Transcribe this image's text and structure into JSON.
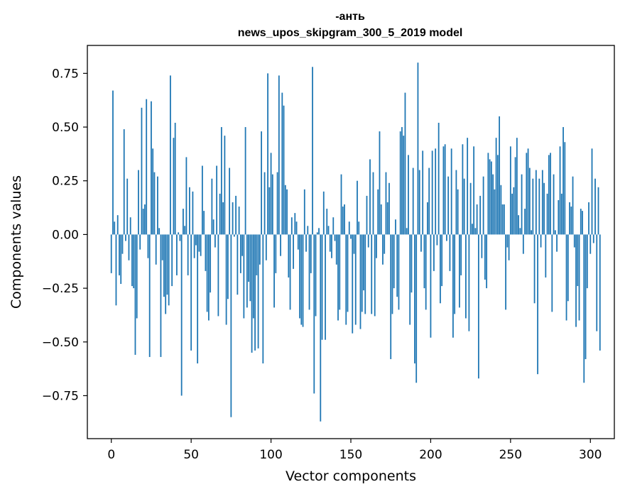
{
  "chart_data": {
    "type": "bar",
    "title": "-анть",
    "subtitle": "news_upos_skipgram_300_5_2019 model",
    "xlabel": "Vector components",
    "ylabel": "Components values",
    "xlim": [
      -15,
      315
    ],
    "ylim": [
      -0.95,
      0.88
    ],
    "xticks": [
      0,
      50,
      100,
      150,
      200,
      250,
      300
    ],
    "xtick_labels": [
      "0",
      "50",
      "100",
      "150",
      "200",
      "250",
      "300"
    ],
    "yticks": [
      0.75,
      0.5,
      0.25,
      0.0,
      -0.25,
      -0.5,
      -0.75
    ],
    "ytick_labels": [
      "0.75",
      "0.50",
      "0.25",
      "0.00",
      "−0.25",
      "−0.50",
      "−0.75"
    ],
    "color": "#1f77b4",
    "grid": false,
    "values": [
      -0.18,
      0.67,
      0.06,
      -0.33,
      0.09,
      -0.19,
      -0.23,
      -0.09,
      0.49,
      -0.03,
      0.26,
      -0.12,
      0.08,
      -0.24,
      -0.25,
      -0.56,
      -0.39,
      0.3,
      -0.07,
      0.59,
      0.12,
      0.14,
      0.63,
      -0.11,
      -0.57,
      0.62,
      0.4,
      0.29,
      -0.14,
      0.27,
      0.03,
      -0.57,
      -0.12,
      -0.29,
      -0.37,
      -0.28,
      -0.33,
      0.74,
      -0.24,
      0.45,
      0.52,
      -0.19,
      0.01,
      -0.03,
      -0.75,
      0.12,
      0.04,
      0.36,
      -0.19,
      0.22,
      -0.54,
      0.2,
      -0.11,
      -0.05,
      -0.6,
      -0.08,
      -0.1,
      0.32,
      0.11,
      -0.17,
      -0.36,
      -0.4,
      -0.27,
      0.26,
      0.07,
      -0.06,
      0.32,
      -0.38,
      0.19,
      0.5,
      0.15,
      0.46,
      -0.42,
      -0.3,
      0.31,
      -0.85,
      0.15,
      -0.01,
      0.18,
      -0.28,
      0.13,
      -0.18,
      -0.1,
      -0.39,
      0.5,
      -0.34,
      -0.22,
      -0.31,
      -0.55,
      -0.39,
      -0.54,
      -0.19,
      -0.53,
      -0.14,
      0.48,
      -0.6,
      0.29,
      -0.12,
      0.75,
      0.22,
      0.38,
      0.28,
      -0.34,
      -0.18,
      0.29,
      0.74,
      -0.1,
      0.66,
      0.6,
      0.23,
      0.21,
      -0.2,
      -0.35,
      0.08,
      -0.16,
      0.1,
      0.06,
      -0.07,
      -0.39,
      -0.42,
      -0.43,
      0.21,
      -0.08,
      0.04,
      -0.35,
      -0.18,
      0.78,
      -0.74,
      -0.38,
      0.01,
      0.03,
      -0.87,
      -0.49,
      0.2,
      -0.49,
      0.12,
      0.04,
      -0.08,
      -0.11,
      0.08,
      -0.03,
      -0.14,
      -0.4,
      -0.35,
      0.28,
      0.13,
      0.14,
      -0.42,
      -0.36,
      0.06,
      -0.02,
      -0.46,
      -0.09,
      -0.42,
      0.25,
      0.06,
      -0.44,
      -0.36,
      -0.26,
      -0.37,
      0.18,
      -0.06,
      0.35,
      -0.37,
      0.29,
      -0.38,
      -0.11,
      0.21,
      0.48,
      0.14,
      -0.14,
      -0.09,
      0.29,
      0.15,
      0.24,
      -0.58,
      -0.37,
      -0.25,
      0.07,
      -0.29,
      -0.35,
      0.48,
      0.5,
      0.46,
      0.66,
      0.03,
      0.37,
      -0.42,
      -0.27,
      0.31,
      -0.6,
      -0.69,
      0.8,
      0.3,
      -0.08,
      0.39,
      -0.25,
      -0.35,
      0.15,
      0.31,
      -0.48,
      0.39,
      -0.17,
      0.4,
      -0.05,
      0.52,
      -0.32,
      -0.24,
      0.41,
      0.42,
      -0.03,
      0.27,
      -0.17,
      0.4,
      -0.48,
      -0.37,
      0.3,
      0.21,
      -0.34,
      -0.19,
      0.42,
      0.26,
      -0.39,
      0.45,
      -0.45,
      0.24,
      0.05,
      0.41,
      0.03,
      0.14,
      -0.67,
      0.18,
      -0.11,
      0.27,
      -0.21,
      -0.25,
      0.38,
      0.35,
      0.34,
      0.28,
      0.21,
      0.45,
      0.37,
      0.55,
      0.23,
      0.14,
      0.14,
      -0.35,
      -0.06,
      -0.12,
      0.41,
      0.19,
      0.22,
      0.36,
      0.45,
      0.09,
      0.03,
      0.28,
      -0.09,
      0.12,
      0.38,
      0.4,
      0.31,
      0.02,
      0.26,
      -0.32,
      0.3,
      -0.65,
      0.26,
      -0.06,
      0.3,
      0.24,
      -0.2,
      0.19,
      0.37,
      0.38,
      -0.36,
      0.28,
      0.02,
      -0.08,
      0.16,
      0.41,
      0.19,
      0.5,
      0.43,
      -0.4,
      -0.31,
      0.15,
      0.13,
      0.27,
      -0.06,
      -0.43,
      -0.24,
      -0.4,
      0.12,
      0.11,
      -0.69,
      -0.58,
      -0.25,
      0.15,
      -0.09,
      0.4,
      -0.04,
      0.26,
      -0.45,
      0.22,
      -0.54
    ]
  }
}
